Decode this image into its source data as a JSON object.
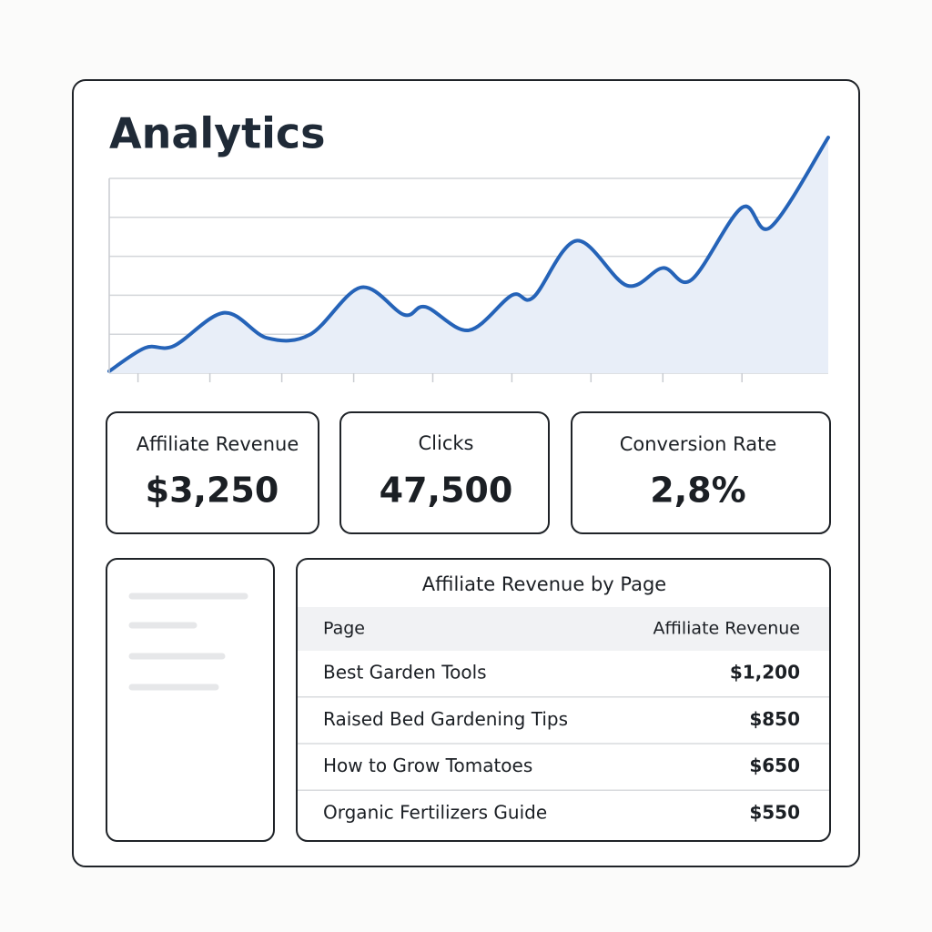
{
  "header": {
    "title": "Analytics"
  },
  "chart_data": {
    "type": "line",
    "x": [
      0,
      5,
      9,
      16,
      22,
      28,
      35,
      41,
      44,
      50,
      56,
      59,
      65,
      72,
      77,
      81,
      88,
      92,
      100
    ],
    "series": [
      {
        "color": "#2563b8",
        "values": [
          1,
          13,
          14,
          31,
          18,
          20,
          44,
          30,
          34,
          22,
          40,
          39,
          68,
          45,
          54,
          48,
          85,
          75,
          121
        ]
      }
    ],
    "xlim": [
      0,
      100
    ],
    "ylim": [
      0,
      100
    ],
    "xticks": [
      4,
      14,
      24,
      34,
      45,
      56,
      67,
      77,
      88
    ],
    "yticks": [
      0,
      20,
      40,
      60,
      80,
      100
    ],
    "grid": true,
    "area_color": "#e8eef8"
  },
  "metrics": [
    {
      "label": "Affiliate Revenue",
      "value": "$3,250"
    },
    {
      "label": "Clicks",
      "value": "47,500"
    },
    {
      "label": "Conversion Rate",
      "value": "2,8%"
    }
  ],
  "table": {
    "title": "Affiliate Revenue by Page",
    "columns": [
      "Page",
      "Affiliate Revenue"
    ],
    "rows": [
      [
        "Best Garden Tools",
        "$1,200"
      ],
      [
        "Raised Bed Gardening Tips",
        "$850"
      ],
      [
        "How to Grow Tomatoes",
        "$650"
      ],
      [
        "Organic Fertilizers Guide",
        "$550"
      ]
    ]
  }
}
